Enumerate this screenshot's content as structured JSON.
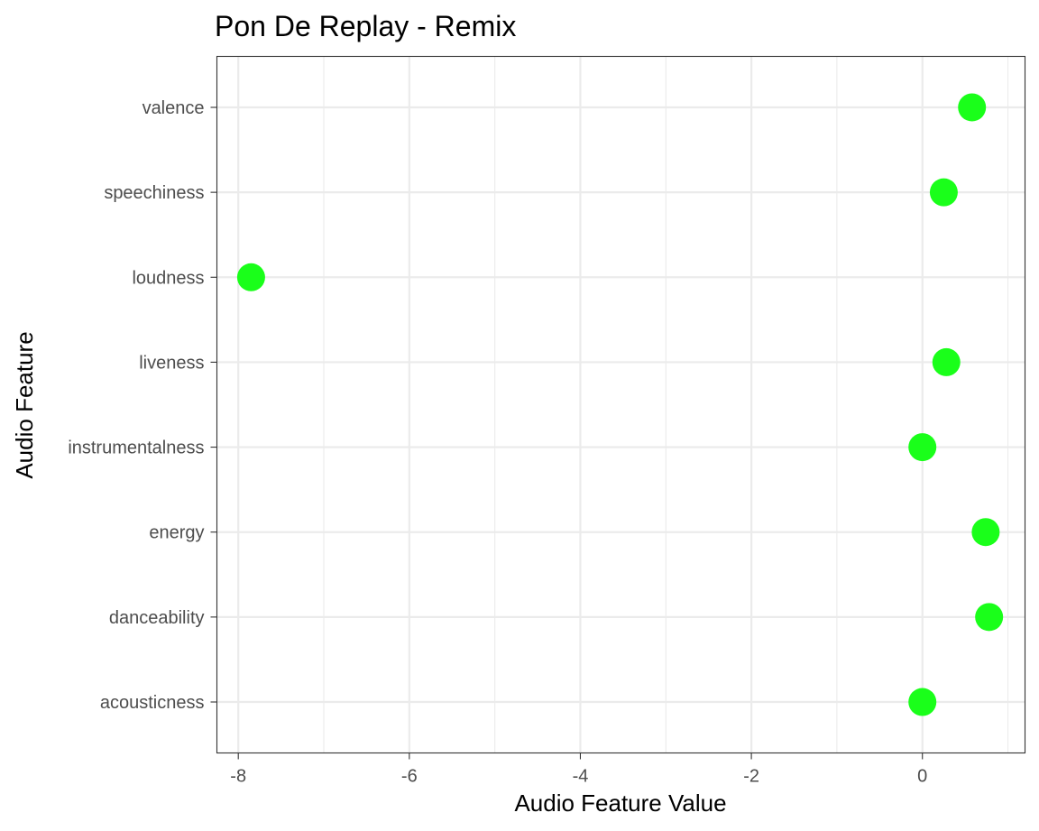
{
  "chart_data": {
    "type": "scatter",
    "title": "Pon De Replay - Remix",
    "xlabel": "Audio Feature Value",
    "ylabel": "Audio Feature",
    "categories": [
      "acousticness",
      "danceability",
      "energy",
      "instrumentalness",
      "liveness",
      "loudness",
      "speechiness",
      "valence"
    ],
    "values": [
      0.0,
      0.78,
      0.74,
      0.0,
      0.28,
      -7.85,
      0.25,
      0.58
    ],
    "x_ticks": [
      -8,
      -6,
      -4,
      -2,
      0
    ],
    "x_tick_labels": [
      "-8",
      "-6",
      "-4",
      "-2",
      "0"
    ],
    "xlim": [
      -8.25,
      1.2
    ],
    "grid": true,
    "point_color": "#1aff1a"
  }
}
